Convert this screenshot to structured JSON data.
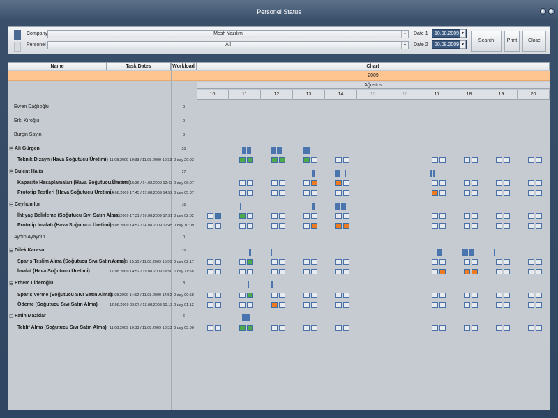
{
  "window": {
    "title": "Personel Status"
  },
  "filter": {
    "company_label": "Company :",
    "company_value": "Mesh Yazılım",
    "personel_label": "Personel :",
    "personel_value": "All",
    "date1_label": "Date 1 :",
    "date1_value": "10.08.2009",
    "date2_label": "Date 2 :",
    "date2_value": "20.08.2009",
    "search_label": "Search",
    "print_label": "Print",
    "close_label": "Close"
  },
  "grid": {
    "col_name": "Name",
    "col_dates": "Task Dates",
    "col_workload": "Workload %",
    "col_chart": "Chart",
    "year": "2009",
    "month": "Ağustos",
    "days": [
      "10",
      "11",
      "12",
      "13",
      "14",
      "15",
      "16",
      "17",
      "18",
      "19",
      "20"
    ]
  },
  "rows": [
    {
      "type": "person",
      "name": "Evren Dağlıoğlu",
      "workload": "0"
    },
    {
      "type": "person",
      "name": "Erkl Kıroğlu",
      "workload": "0"
    },
    {
      "type": "person",
      "name": "Burçin Sayın",
      "workload": "0"
    },
    {
      "type": "group",
      "name": "Ali Gürgen",
      "workload": "31"
    },
    {
      "type": "task",
      "name": "Teknik Dizayn (Hava Soğutucu Üretimi)",
      "dates": "11.08.2009 10:33 / 11.08.2009 10:33",
      "workload": "0 day 20:03"
    },
    {
      "type": "group",
      "name": "Bulent Halis",
      "workload": "17"
    },
    {
      "type": "task",
      "name": "Kapasite Hesaplamaları (Hava Soğutucu Üretimi)",
      "dates": "13.08.2009 15:36 / 14.08.2009 12:43",
      "workload": "0 day 06:07"
    },
    {
      "type": "task",
      "name": "Prototip Testleri (Hava Soğutucu Üretimi)",
      "dates": "14.08.2009 17:45 / 17.08.2009 14:52",
      "workload": "0 day 05:07"
    },
    {
      "type": "group",
      "name": "Ceyhun Itır",
      "workload": "16"
    },
    {
      "type": "task",
      "name": "İhtiyaç Belirleme (Soğutucu Sıvı Satın Alma)",
      "dates": "10.08.2009 17:31 / 10.08.2009 17:31",
      "workload": "0 day 02:02"
    },
    {
      "type": "task",
      "name": "Prototip İmalatı (Hava Soğutucu Üretimi)",
      "dates": "13.08.2009 14:52 / 14.08.2009 17:45",
      "workload": "0 day 10:09"
    },
    {
      "type": "person",
      "name": "Aydın Ayaydın",
      "workload": "0"
    },
    {
      "type": "group",
      "name": "Dilek Karasu",
      "workload": "19"
    },
    {
      "type": "task",
      "name": "Spariş Teslim Alma (Soğutucu Sıvı Satın Alma)",
      "dates": "11.08.2009 15:50 / 11.08.2009 15:50",
      "workload": "0 day 02:17"
    },
    {
      "type": "task",
      "name": "İmalat (Hava Soğutucu Üretimi)",
      "dates": "17.08.2009 14:52 / 19.08.2009 09:50",
      "workload": "0 day 11:58"
    },
    {
      "type": "group",
      "name": "Ethem Lideroğlu",
      "workload": "3"
    },
    {
      "type": "task",
      "name": "Spariş Verme (Soğutucu Sıvı Satın Alma)",
      "dates": "11.08.2009 14:52 / 11.08.2009 14:52",
      "workload": "0 day 00:58"
    },
    {
      "type": "task",
      "name": "Ödeme (Soğutucu Sıvı Satın Alma)",
      "dates": "12.08.2009 09:07 / 12.08.2009 10:19",
      "workload": "0 day 01:12"
    },
    {
      "type": "group",
      "name": "Fatih Mazidar",
      "workload": "6"
    },
    {
      "type": "task",
      "name": "Teklif Alma (Soğutucu Sıvı Satın Alma)",
      "dates": "11.08.2009 10:33 / 11.08.2009 10:33",
      "workload": "0 day 05:00"
    }
  ],
  "colors": {
    "accent": "#4a74ad",
    "done": "#4fa84a",
    "in_progress": "#f07a22",
    "year_band": "#fec591"
  }
}
